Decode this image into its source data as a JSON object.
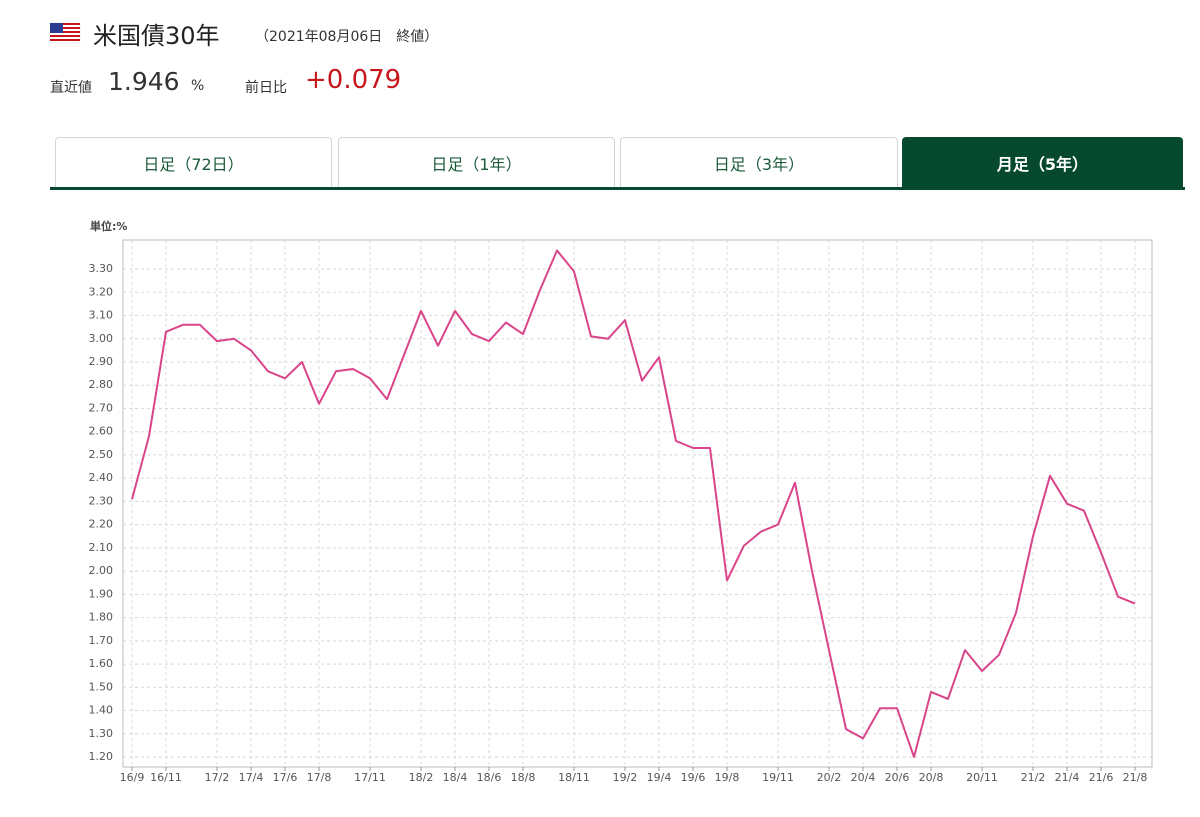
{
  "header": {
    "title": "米国債30年",
    "date": "（2021年08月06日　終値）",
    "latest_label": "直近値",
    "latest_value": "1.946",
    "latest_unit": "%",
    "change_label": "前日比",
    "change_value": "+0.079"
  },
  "tabs": {
    "labels": [
      "日足（72日）",
      "日足（1年）",
      "日足（3年）",
      "月足（5年）"
    ],
    "active": 3
  },
  "chart_data": {
    "type": "line",
    "unit_label": "単位:%",
    "color": "#d9448a",
    "grid": true,
    "categories": [
      "16/9",
      null,
      "16/11",
      null,
      null,
      "17/2",
      null,
      "17/4",
      null,
      "17/6",
      null,
      "17/8",
      null,
      null,
      "17/11",
      null,
      null,
      "18/2",
      null,
      "18/4",
      null,
      "18/6",
      null,
      "18/8",
      null,
      null,
      "18/11",
      null,
      null,
      "19/2",
      null,
      "19/4",
      null,
      "19/6",
      null,
      "19/8",
      null,
      null,
      "19/11",
      null,
      null,
      "20/2",
      null,
      "20/4",
      null,
      "20/6",
      null,
      "20/8",
      null,
      null,
      "20/11",
      null,
      null,
      "21/2",
      null,
      "21/4",
      null,
      "21/6",
      null,
      "21/8"
    ],
    "values": [
      2.31,
      2.58,
      3.03,
      3.06,
      3.06,
      2.99,
      3.0,
      2.95,
      2.86,
      2.83,
      2.9,
      2.72,
      2.86,
      2.87,
      2.83,
      2.74,
      2.93,
      3.12,
      2.97,
      3.12,
      3.02,
      2.99,
      3.07,
      3.02,
      3.21,
      3.38,
      3.29,
      3.01,
      3.0,
      3.08,
      2.82,
      2.92,
      2.56,
      2.53,
      2.53,
      1.96,
      2.11,
      2.17,
      2.2,
      2.38,
      2.0,
      1.66,
      1.32,
      1.28,
      1.41,
      1.41,
      1.2,
      1.48,
      1.45,
      1.66,
      1.57,
      1.64,
      1.82,
      2.15,
      2.41,
      2.29,
      2.26,
      2.08,
      1.89,
      1.86
    ],
    "ylim": [
      1.157,
      3.425
    ],
    "yticks": [
      {
        "value": 1.2,
        "label": "1.20"
      },
      {
        "value": 1.3,
        "label": "1.30"
      },
      {
        "value": 1.4,
        "label": "1.40"
      },
      {
        "value": 1.5,
        "label": "1.50"
      },
      {
        "value": 1.6,
        "label": "1.60"
      },
      {
        "value": 1.7,
        "label": "1.70"
      },
      {
        "value": 1.8,
        "label": "1.80"
      },
      {
        "value": 1.9,
        "label": "1.90"
      },
      {
        "value": 2.0,
        "label": "2.00"
      },
      {
        "value": 2.1,
        "label": "2.10"
      },
      {
        "value": 2.2,
        "label": "2.20"
      },
      {
        "value": 2.3,
        "label": "2.30"
      },
      {
        "value": 2.4,
        "label": "2.40"
      },
      {
        "value": 2.5,
        "label": "2.50"
      },
      {
        "value": 2.6,
        "label": "2.60"
      },
      {
        "value": 2.7,
        "label": "2.70"
      },
      {
        "value": 2.8,
        "label": "2.80"
      },
      {
        "value": 2.9,
        "label": "2.90"
      },
      {
        "value": 3.0,
        "label": "3.00"
      },
      {
        "value": 3.1,
        "label": "3.10"
      },
      {
        "value": 3.2,
        "label": "3.20"
      },
      {
        "value": 3.3,
        "label": "3.30"
      }
    ]
  }
}
